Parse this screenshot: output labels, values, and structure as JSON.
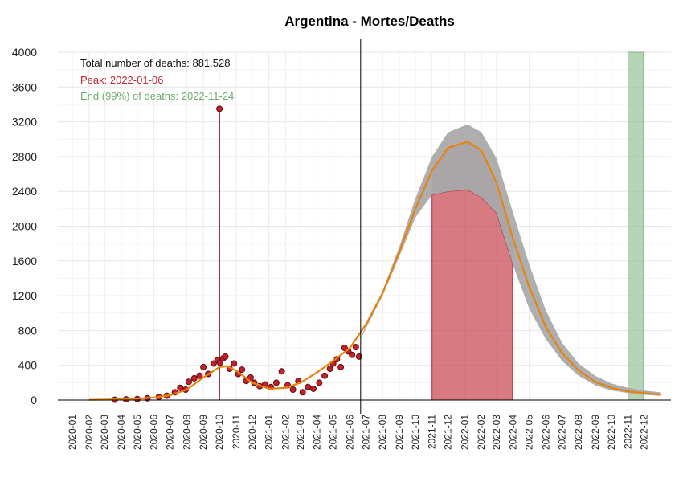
{
  "chart_data": {
    "type": "line",
    "title": "Argentina - Mortes/Deaths",
    "xlabel": "",
    "ylabel": "",
    "ylim": [
      0,
      4000
    ],
    "y_ticks": [
      0,
      400,
      800,
      1200,
      1600,
      2000,
      2400,
      2800,
      3200,
      3600,
      4000
    ],
    "x_range": [
      "2019-12-05",
      "2023-01-20"
    ],
    "x_tick_labels": [
      "2020-01",
      "2020-02",
      "2020-03",
      "2020-04",
      "2020-05",
      "2020-06",
      "2020-07",
      "2020-08",
      "2020-09",
      "2020-10",
      "2020-11",
      "2020-12",
      "2021-01",
      "2021-02",
      "2021-03",
      "2021-04",
      "2021-05",
      "2021-06",
      "2021-07",
      "2021-08",
      "2021-09",
      "2021-10",
      "2021-11",
      "2021-12",
      "2022-01",
      "2022-02",
      "2022-03",
      "2022-04",
      "2022-05",
      "2022-06",
      "2022-07",
      "2022-08",
      "2022-09",
      "2022-10",
      "2022-11",
      "2022-12"
    ],
    "grid": true,
    "vertical_line_date": "2021-06-21",
    "annotations": {
      "total": "Total number of deaths: 881.528",
      "peak": "Peak: 2022-01-06",
      "end": "End (99%) of deaths: 2022-11-24"
    },
    "peak_band": {
      "start": "2021-11-01",
      "end": "2022-03-31",
      "color": "#c8414b"
    },
    "end_band": {
      "start": "2022-11-01",
      "end": "2022-11-30",
      "color": "#8fbf8f"
    },
    "fitted_curve": {
      "x": [
        "2020-02-01",
        "2020-03-01",
        "2020-04-01",
        "2020-05-01",
        "2020-06-01",
        "2020-07-01",
        "2020-08-01",
        "2020-09-01",
        "2020-10-01",
        "2020-10-15",
        "2020-11-01",
        "2020-12-01",
        "2021-01-01",
        "2021-02-01",
        "2021-03-01",
        "2021-04-01",
        "2021-05-01",
        "2021-06-01",
        "2021-07-01",
        "2021-08-01",
        "2021-09-01",
        "2021-10-01",
        "2021-11-01",
        "2021-12-01",
        "2022-01-06",
        "2022-02-01",
        "2022-03-01",
        "2022-04-01",
        "2022-05-01",
        "2022-06-01",
        "2022-07-01",
        "2022-08-01",
        "2022-09-01",
        "2022-10-01",
        "2022-11-01",
        "2022-12-01",
        "2022-12-31"
      ],
      "y": [
        3,
        5,
        10,
        18,
        30,
        55,
        120,
        260,
        380,
        390,
        340,
        200,
        130,
        140,
        200,
        320,
        450,
        600,
        870,
        1230,
        1700,
        2200,
        2640,
        2900,
        2970,
        2870,
        2500,
        1850,
        1300,
        840,
        540,
        340,
        210,
        140,
        100,
        80,
        60
      ],
      "color": "#e8820c"
    },
    "confidence_band": {
      "x": [
        "2021-06-21",
        "2021-08-01",
        "2021-09-01",
        "2021-10-01",
        "2021-11-01",
        "2021-12-01",
        "2022-01-06",
        "2022-02-01",
        "2022-03-01",
        "2022-04-01",
        "2022-05-01",
        "2022-06-01",
        "2022-07-01",
        "2022-08-01",
        "2022-09-01",
        "2022-10-01",
        "2022-11-01",
        "2022-12-01",
        "2022-12-31"
      ],
      "lower": [
        700,
        1200,
        1650,
        2100,
        2360,
        2400,
        2420,
        2330,
        2150,
        1550,
        1050,
        700,
        450,
        280,
        170,
        110,
        80,
        60,
        50
      ],
      "upper": [
        720,
        1260,
        1760,
        2320,
        2800,
        3080,
        3170,
        3080,
        2780,
        2150,
        1560,
        1030,
        660,
        420,
        280,
        190,
        140,
        110,
        90
      ],
      "color": "#aaaaaa"
    },
    "observed_points": {
      "x": [
        "2020-03-20",
        "2020-04-10",
        "2020-05-01",
        "2020-05-20",
        "2020-06-10",
        "2020-06-25",
        "2020-07-10",
        "2020-07-20",
        "2020-07-30",
        "2020-08-05",
        "2020-08-15",
        "2020-08-25",
        "2020-09-01",
        "2020-09-10",
        "2020-09-20",
        "2020-09-28",
        "2020-10-02",
        "2020-10-08",
        "2020-10-12",
        "2020-10-20",
        "2020-10-28",
        "2020-11-05",
        "2020-11-12",
        "2020-11-20",
        "2020-11-28",
        "2020-12-05",
        "2020-12-15",
        "2020-12-25",
        "2021-01-05",
        "2021-01-15",
        "2021-01-25",
        "2021-02-05",
        "2021-02-15",
        "2021-02-25",
        "2021-03-05",
        "2021-03-15",
        "2021-03-25",
        "2021-04-05",
        "2021-04-15",
        "2021-04-25",
        "2021-05-01",
        "2021-05-08",
        "2021-05-15",
        "2021-05-22",
        "2021-05-29",
        "2021-06-05",
        "2021-06-12",
        "2021-06-18"
      ],
      "y": [
        4,
        8,
        12,
        20,
        35,
        50,
        90,
        140,
        120,
        210,
        250,
        280,
        380,
        300,
        420,
        460,
        430,
        480,
        500,
        360,
        420,
        300,
        350,
        220,
        260,
        200,
        160,
        180,
        150,
        200,
        330,
        170,
        120,
        220,
        90,
        150,
        130,
        200,
        280,
        360,
        420,
        470,
        380,
        600,
        560,
        520,
        610,
        500
      ],
      "color": "#c8202a"
    },
    "spike": {
      "x": "2020-10-01",
      "y": 3350
    }
  }
}
